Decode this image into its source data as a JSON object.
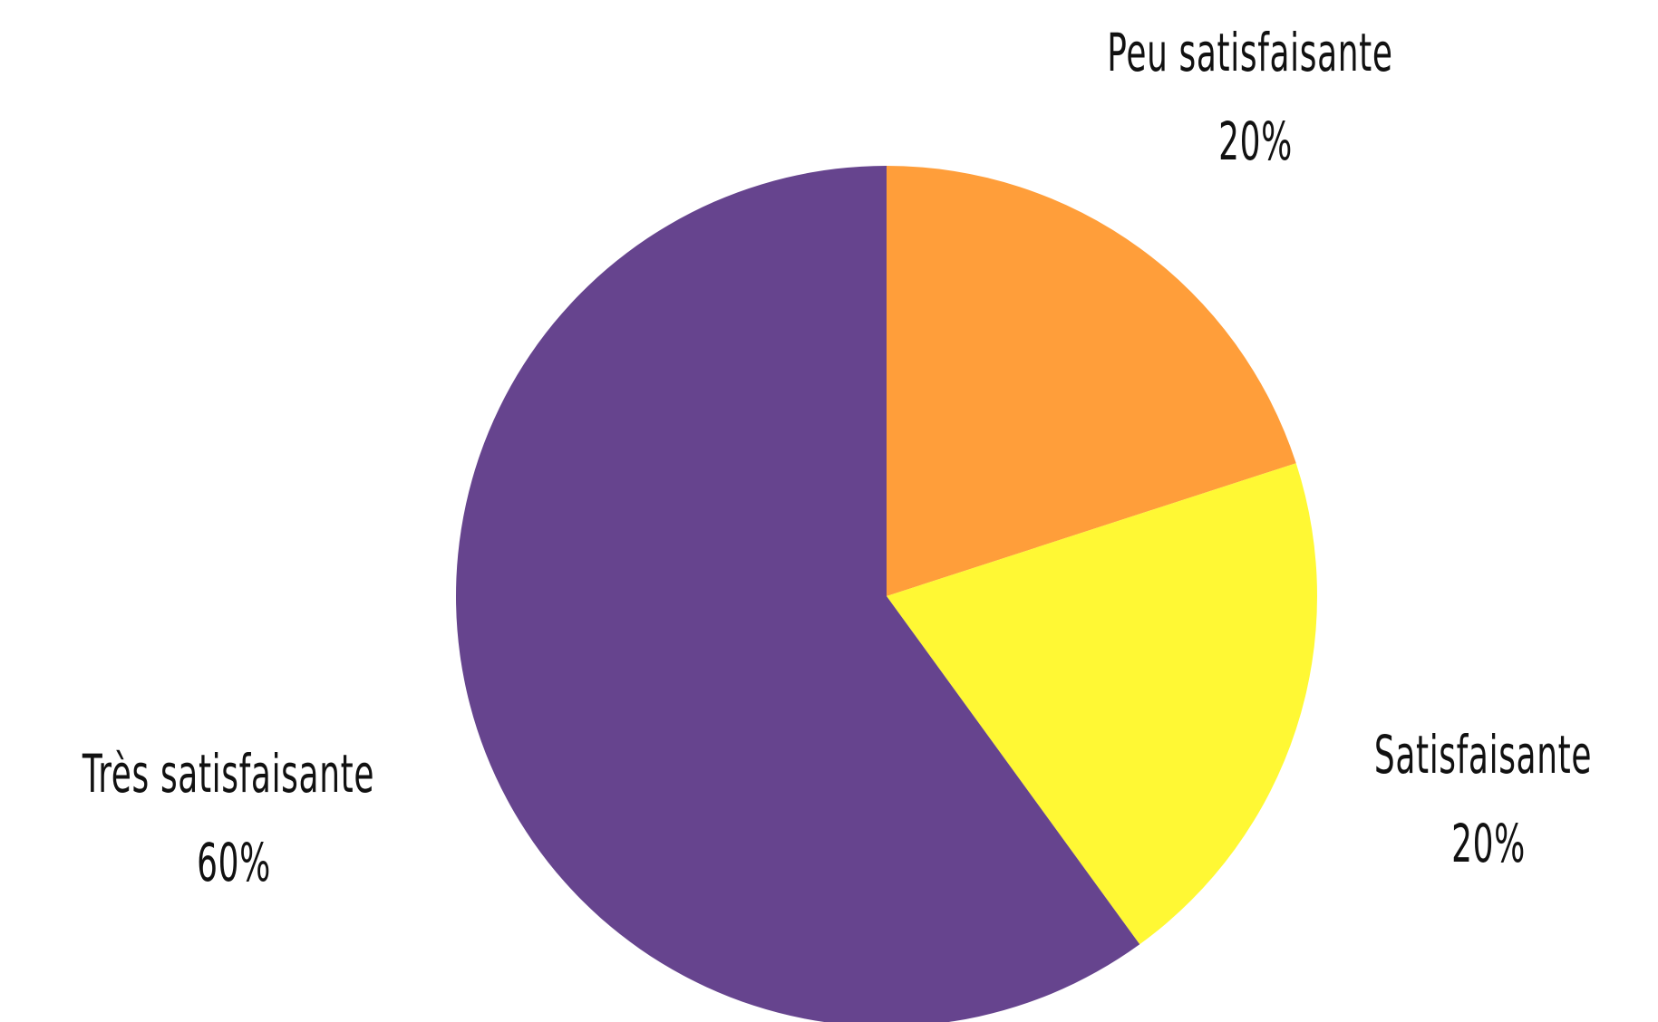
{
  "chart_data": {
    "type": "pie",
    "title": "",
    "slices": [
      {
        "label": "Peu satisfaisante",
        "value": 20,
        "value_label": "20%",
        "color": "#FF9E3A"
      },
      {
        "label": "Satisfaisante",
        "value": 20,
        "value_label": "20%",
        "color": "#FFF834"
      },
      {
        "label": "Très satisfaisante",
        "value": 60,
        "value_label": "60%",
        "color": "#66448E"
      }
    ],
    "start_angle": "12 o'clock",
    "direction": "clockwise",
    "legend": "none"
  }
}
